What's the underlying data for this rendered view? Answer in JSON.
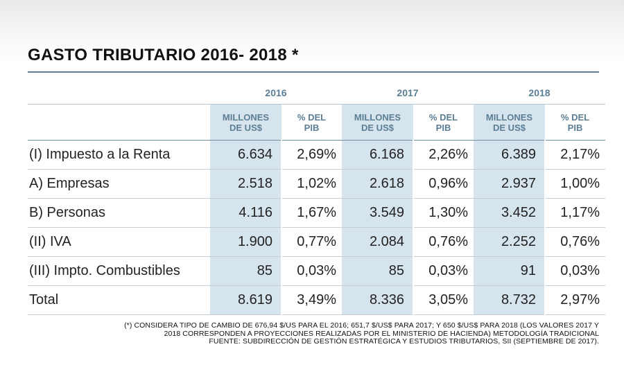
{
  "title": "GASTO TRIBUTARIO 2016- 2018 *",
  "years": [
    "2016",
    "2017",
    "2018"
  ],
  "sub_headers": {
    "millones": "MILLONES\nDE US$",
    "pct": "% DEL\nPIB"
  },
  "rows": [
    {
      "label": "(I) Impuesto a la Renta",
      "v2016": "6.634",
      "p2016": "2,69%",
      "v2017": "6.168",
      "p2017": "2,26%",
      "v2018": "6.389",
      "p2018": "2,17%"
    },
    {
      "label": "A) Empresas",
      "v2016": "2.518",
      "p2016": "1,02%",
      "v2017": "2.618",
      "p2017": "0,96%",
      "v2018": "2.937",
      "p2018": "1,00%"
    },
    {
      "label": "B) Personas",
      "v2016": "4.116",
      "p2016": "1,67%",
      "v2017": "3.549",
      "p2017": "1,30%",
      "v2018": "3.452",
      "p2018": "1,17%"
    },
    {
      "label": "(II) IVA",
      "v2016": "1.900",
      "p2016": "0,77%",
      "v2017": "2.084",
      "p2017": "0,76%",
      "v2018": "2.252",
      "p2018": "0,76%"
    },
    {
      "label": "(III) Impto. Combustibles",
      "v2016": "85",
      "p2016": "0,03%",
      "v2017": "85",
      "p2017": "0,03%",
      "v2018": "91",
      "p2018": "0,03%"
    },
    {
      "label": "Total",
      "v2016": "8.619",
      "p2016": "3,49%",
      "v2017": "8.336",
      "p2017": "3,05%",
      "v2018": "8.732",
      "p2018": "2,97%"
    }
  ],
  "footnote": [
    "(*) CONSIDERA TIPO DE CAMBIO DE 676,94 $/US PARA EL 2016; 651,7 $/US$ PARA 2017; Y 650 $/US$ PARA 2018 (LOS VALORES 2017 Y",
    "2018 CORRESPONDEN A PROYECCIONES REALIZADAS POR EL MINISTERIO DE HACIENDA) METODOLOGÍA TRADICIONAL",
    "FUENTE: SUBDIRECCIÓN DE GESTIÓN ESTRATÉGICA Y ESTUDIOS TRIBUTARIOS, SII (SEPTIEMBRE DE 2017)."
  ],
  "colors": {
    "accent": "#5b7e95",
    "shade": "#d6e4ee"
  }
}
